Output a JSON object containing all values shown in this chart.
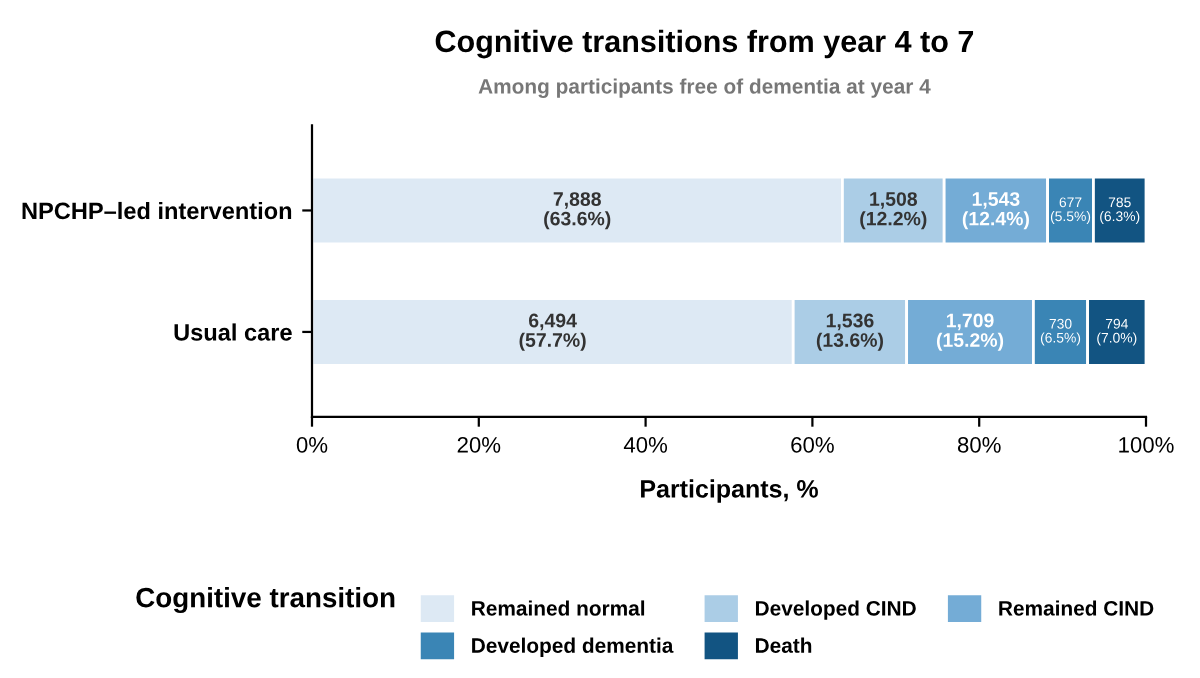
{
  "chart_data": {
    "type": "bar",
    "orientation": "horizontal",
    "stacked": true,
    "title": "Cognitive transitions from year 4 to 7",
    "subtitle": "Among participants free of dementia at year 4",
    "xlabel": "Participants, %",
    "legend_title": "Cognitive transition",
    "legend": "bottom",
    "categories": [
      "NPCHP–led intervention",
      "Usual care"
    ],
    "series": [
      {
        "name": "Remained normal",
        "color": "#dde9f4",
        "values": [
          63.6,
          57.7
        ],
        "value_labels": [
          "7,888\n(63.6%)",
          "6,494\n(57.7%)"
        ]
      },
      {
        "name": "Developed CIND",
        "color": "#abcde6",
        "values": [
          12.2,
          13.6
        ],
        "value_labels": [
          "1,508\n(12.2%)",
          "1,536\n(13.6%)"
        ]
      },
      {
        "name": "Remained CIND",
        "color": "#74acd6",
        "values": [
          12.4,
          15.2
        ],
        "value_labels": [
          "1,543\n(12.4%)",
          "1,709\n(15.2%)"
        ]
      },
      {
        "name": "Developed dementia",
        "color": "#3a85b5",
        "values": [
          5.5,
          6.5
        ],
        "value_labels": [
          "677\n(5.5%)",
          "730\n(6.5%)"
        ]
      },
      {
        "name": "Death",
        "color": "#125482",
        "values": [
          6.3,
          7.0
        ],
        "value_labels": [
          "785\n(6.3%)",
          "794\n(7.0%)"
        ]
      }
    ],
    "xlim": [
      0,
      100
    ],
    "xticks": [
      {
        "value": 0,
        "label": "0%"
      },
      {
        "value": 20,
        "label": "20%"
      },
      {
        "value": 40,
        "label": "40%"
      },
      {
        "value": 60,
        "label": "60%"
      },
      {
        "value": 80,
        "label": "80%"
      },
      {
        "value": 100,
        "label": "100%"
      }
    ],
    "grid": false
  }
}
